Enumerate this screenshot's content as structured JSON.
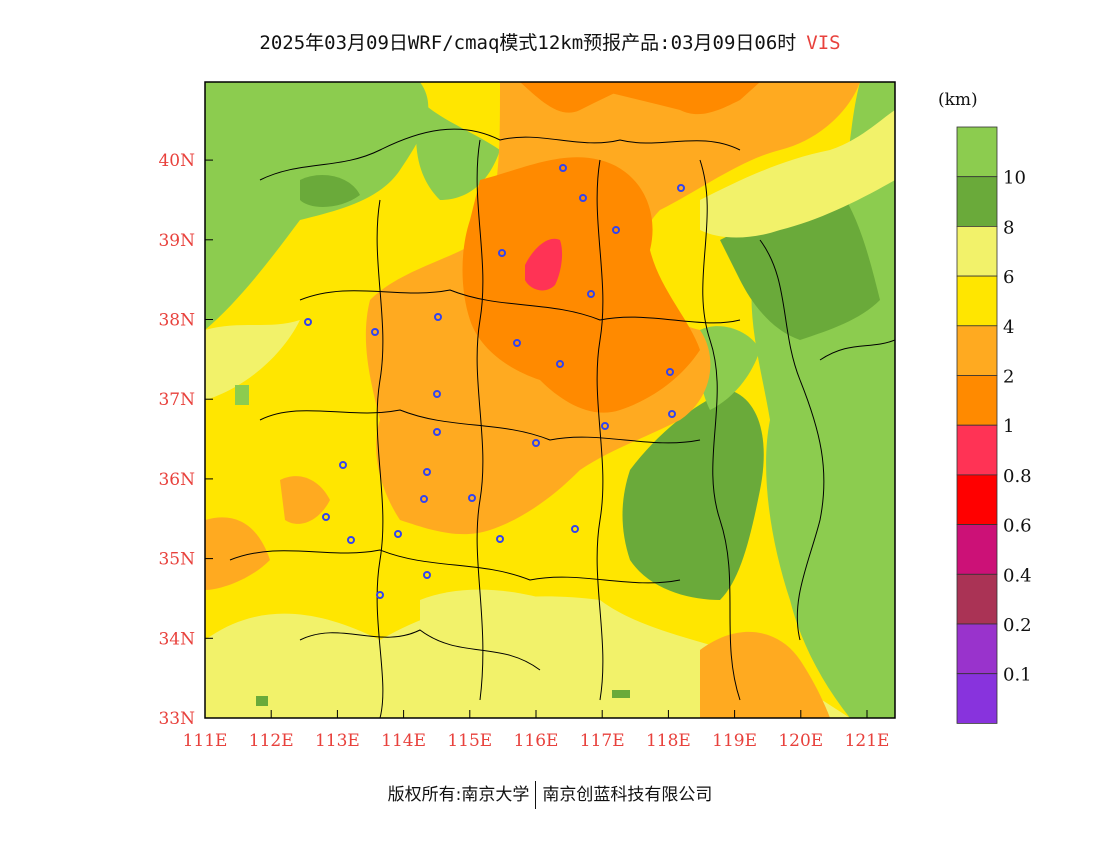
{
  "title": {
    "main": "2025年03月09日WRF/cmaq模式12km预报产品:03月09日06时",
    "variable": "VIS"
  },
  "axes": {
    "lon_labels": [
      "111E",
      "112E",
      "113E",
      "114E",
      "115E",
      "116E",
      "117E",
      "118E",
      "119E",
      "120E",
      "121E"
    ],
    "lat_labels": [
      "33N",
      "34N",
      "35N",
      "36N",
      "37N",
      "38N",
      "39N",
      "40N"
    ]
  },
  "legend": {
    "unit": "(km)",
    "levels": [
      {
        "label": "10",
        "color": "#8ccc4f"
      },
      {
        "label": "8",
        "color": "#6aaa3a"
      },
      {
        "label": "6",
        "color": "#f2f26a"
      },
      {
        "label": "4",
        "color": "#ffe600"
      },
      {
        "label": "2",
        "color": "#ffaa20"
      },
      {
        "label": "1",
        "color": "#ff8a00"
      },
      {
        "label": "0.8",
        "color": "#ff3355"
      },
      {
        "label": "0.6",
        "color": "#ff0000"
      },
      {
        "label": "0.4",
        "color": "#cc1177"
      },
      {
        "label": "0.2",
        "color": "#aa3355"
      },
      {
        "label": "0.1",
        "color": "#9933cc"
      },
      {
        "label": "",
        "color": "#8833dd"
      }
    ]
  },
  "footer": {
    "left": "版权所有:南京大学",
    "right": "南京创蓝科技有限公司"
  }
}
